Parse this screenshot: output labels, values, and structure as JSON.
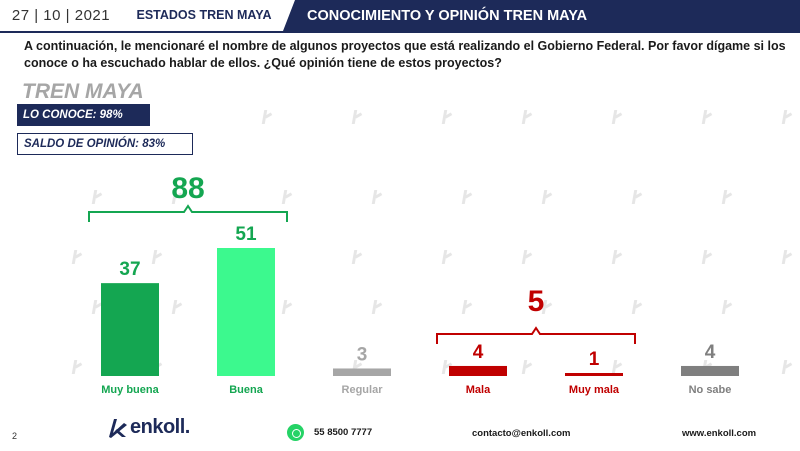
{
  "header": {
    "date": "27 | 10 | 2021",
    "state": "ESTADOS TREN MAYA",
    "title": "CONOCIMIENTO Y OPINIÓN TREN MAYA"
  },
  "question": "A continuación, le mencionaré el nombre de algunos proyectos que está realizando el Gobierno Federal. Por favor dígame si los conoce o ha escuchado hablar de ellos. ¿Qué opinión tiene de estos proyectos?",
  "section": {
    "title": "TREN MAYA",
    "conoce": "LO CONOCE: 98%",
    "saldo": "SALDO DE OPINIÓN: 83%"
  },
  "colors": {
    "navy": "#1d2a59",
    "muy_buena": "#14a651",
    "buena": "#3cf98e",
    "neutral": "#a6a6a6",
    "negative": "#c00000"
  },
  "chart_data": {
    "type": "bar",
    "categories": [
      "Muy buena",
      "Buena",
      "Regular",
      "Mala",
      "Muy mala",
      "No sabe"
    ],
    "values": [
      37,
      51,
      3,
      4,
      1,
      4
    ],
    "bar_colors": [
      "#14a651",
      "#3cf98e",
      "#a6a6a6",
      "#c00000",
      "#c00000",
      "#7f7f7f"
    ],
    "label_colors": [
      "#14a651",
      "#14a651",
      "#a6a6a6",
      "#c00000",
      "#c00000",
      "#7f7f7f"
    ],
    "groups": [
      {
        "label": "88",
        "color": "#14a651",
        "from": 0,
        "to": 1
      },
      {
        "label": "5",
        "color": "#c00000",
        "from": 3,
        "to": 4
      }
    ]
  },
  "footer": {
    "page": "2",
    "brand": "enkoll.",
    "phone": "55 8500 7777",
    "email": "contacto@enkoll.com",
    "website": "www.enkoll.com"
  }
}
